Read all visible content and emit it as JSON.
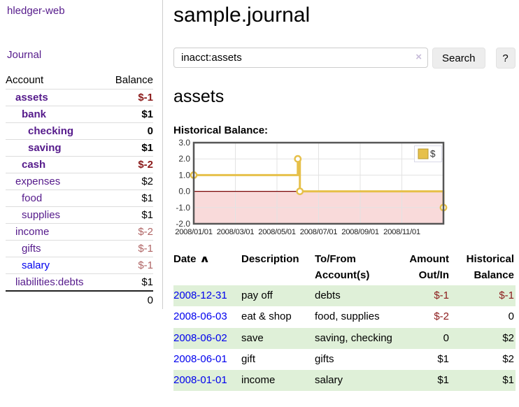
{
  "sidebar": {
    "app_title": "hledger-web",
    "journal_label": "Journal",
    "accounts_table": {
      "account_header": "Account",
      "balance_header": "Balance",
      "rows": [
        {
          "name": "assets",
          "depth": 1,
          "bold": true,
          "balance": "$-1",
          "balance_style": "neg"
        },
        {
          "name": "bank",
          "depth": 2,
          "bold": true,
          "balance": "$1",
          "balance_style": "pos"
        },
        {
          "name": "checking",
          "depth": 3,
          "bold": true,
          "balance": "0",
          "balance_style": "pos"
        },
        {
          "name": "saving",
          "depth": 3,
          "bold": true,
          "balance": "$1",
          "balance_style": "pos"
        },
        {
          "name": "cash",
          "depth": 2,
          "bold": true,
          "balance": "$-2",
          "balance_style": "neg"
        },
        {
          "name": "expenses",
          "depth": 1,
          "bold": false,
          "balance": "$2",
          "balance_style": "pos"
        },
        {
          "name": "food",
          "depth": 2,
          "bold": false,
          "balance": "$1",
          "balance_style": "pos"
        },
        {
          "name": "supplies",
          "depth": 2,
          "bold": false,
          "balance": "$1",
          "balance_style": "pos"
        },
        {
          "name": "income",
          "depth": 1,
          "bold": false,
          "balance": "$-2",
          "balance_style": "neg-faded"
        },
        {
          "name": "gifts",
          "depth": 2,
          "bold": false,
          "balance": "$-1",
          "balance_style": "neg-faded"
        },
        {
          "name": "salary",
          "depth": 2,
          "bold": false,
          "link_color": "blue",
          "balance": "$-1",
          "balance_style": "neg-faded"
        },
        {
          "name": "liabilities:debts",
          "depth": 1,
          "bold": false,
          "balance": "$1",
          "balance_style": "pos"
        }
      ],
      "total": "0"
    }
  },
  "main": {
    "title": "sample.journal",
    "search": {
      "value": "inacct:assets",
      "clear_icon": "×",
      "button_label": "Search",
      "help_label": "?"
    },
    "account_heading": "assets",
    "chart_label": "Historical Balance:",
    "register": {
      "columns": [
        {
          "label": "Date",
          "sort": "asc",
          "align": "left"
        },
        {
          "label": "Description",
          "align": "left"
        },
        {
          "label": "To/From Account(s)",
          "align": "left"
        },
        {
          "label": "Amount Out/In",
          "align": "right"
        },
        {
          "label": "Historical Balance",
          "align": "right"
        }
      ],
      "rows": [
        {
          "date": "2008-12-31",
          "description": "pay off",
          "accounts": "debts",
          "amount": "$-1",
          "amount_neg": true,
          "balance": "$-1",
          "balance_neg": true
        },
        {
          "date": "2008-06-03",
          "description": "eat & shop",
          "accounts": "food, supplies",
          "amount": "$-2",
          "amount_neg": true,
          "balance": "0",
          "balance_neg": false
        },
        {
          "date": "2008-06-02",
          "description": "save",
          "accounts": "saving, checking",
          "amount": "0",
          "amount_neg": false,
          "balance": "$2",
          "balance_neg": false
        },
        {
          "date": "2008-06-01",
          "description": "gift",
          "accounts": "gifts",
          "amount": "$1",
          "amount_neg": false,
          "balance": "$2",
          "balance_neg": false
        },
        {
          "date": "2008-01-01",
          "description": "income",
          "accounts": "salary",
          "amount": "$1",
          "amount_neg": false,
          "balance": "$1",
          "balance_neg": false
        }
      ]
    }
  },
  "chart_data": {
    "type": "line",
    "step": true,
    "title": "Historical Balance:",
    "series": [
      {
        "name": "$",
        "color": "#e6c04a",
        "data": [
          [
            "2008-01-01",
            1
          ],
          [
            "2008-06-01",
            2
          ],
          [
            "2008-06-03",
            0
          ],
          [
            "2008-12-31",
            -1
          ]
        ],
        "x_months": [
          0,
          5.0,
          5.1,
          12
        ]
      }
    ],
    "x_domain_months": [
      0,
      12
    ],
    "x_ticks": [
      {
        "m": 0,
        "label": "2008/01/01"
      },
      {
        "m": 2,
        "label": "2008/03/01"
      },
      {
        "m": 4,
        "label": "2008/05/01"
      },
      {
        "m": 6,
        "label": "2008/07/01"
      },
      {
        "m": 8,
        "label": "2008/09/01"
      },
      {
        "m": 10,
        "label": "2008/11/01"
      }
    ],
    "y_ticks": [
      {
        "v": 3,
        "label": "3.0"
      },
      {
        "v": 2,
        "label": "2.0"
      },
      {
        "v": 1,
        "label": "1.0"
      },
      {
        "v": 0,
        "label": "0.0"
      },
      {
        "v": -1,
        "label": "-1.0"
      },
      {
        "v": -2,
        "label": "-2.0"
      }
    ],
    "ylim": [
      -2,
      3
    ],
    "grid": true,
    "legend_position": "top-right",
    "legend_label": "$",
    "colors": {
      "line": "#e6c04a",
      "marker_fill": "#ffffff",
      "legend_swatch_border": "#b89a30",
      "negative_region_fill": "#f9dada",
      "zero_line": "#7a0505",
      "frame": "#565656",
      "gridline": "#e3e3e3",
      "tick_text": "#333333"
    }
  },
  "colors": {
    "link_purple": "#551a8b",
    "link_blue": "#0000ee",
    "negative": "#8b1a1a",
    "negative_faded": "#b06565",
    "row_green": "#dff0d8"
  }
}
